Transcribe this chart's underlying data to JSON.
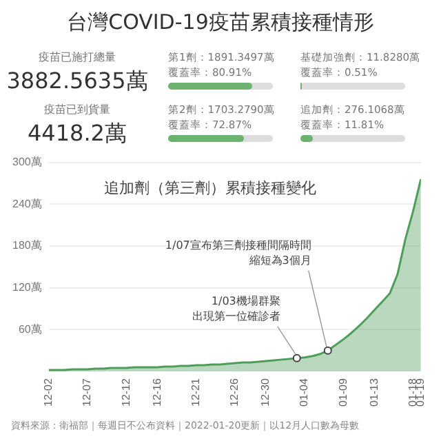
{
  "chart_data": [
    {
      "type": "other",
      "title": "台灣COVID-19疫苗累積接種情形",
      "color": "#6db36f",
      "annotations": [
        "疫苗已施打總量",
        "3882.5635萬",
        "疫苗已到貨量",
        "4418.2萬"
      ],
      "categories": [
        "第1劑：1891.3497萬",
        "基礎加強劑：11.8280萬",
        "第2劑：1703.2790萬",
        "追加劑：276.1068萬"
      ],
      "values": [
        80.91,
        0.51,
        72.87,
        11.81
      ],
      "value_labels": [
        "覆蓋率：80.91%",
        "覆蓋率：0.51%",
        "覆蓋率：72.87%",
        "覆蓋率：11.81%"
      ]
    },
    {
      "type": "area",
      "title": "追加劑（第三劑）累積接種變化",
      "color": "#4f9d5a",
      "x": [
        "2021-12-02",
        "2021-12-03",
        "2021-12-04",
        "2021-12-05",
        "2021-12-06",
        "2021-12-07",
        "2021-12-08",
        "2021-12-09",
        "2021-12-10",
        "2021-12-11",
        "2021-12-12",
        "2021-12-13",
        "2021-12-14",
        "2021-12-15",
        "2021-12-16",
        "2021-12-17",
        "2021-12-18",
        "2021-12-19",
        "2021-12-20",
        "2021-12-21",
        "2021-12-22",
        "2021-12-23",
        "2021-12-24",
        "2021-12-25",
        "2021-12-26",
        "2021-12-27",
        "2021-12-28",
        "2021-12-29",
        "2021-12-30",
        "2021-12-31",
        "2022-01-01",
        "2022-01-02",
        "2022-01-03",
        "2022-01-04",
        "2022-01-05",
        "2022-01-06",
        "2022-01-07",
        "2022-01-08",
        "2022-01-09",
        "2022-01-10",
        "2022-01-11",
        "2022-01-12",
        "2022-01-13",
        "2022-01-14",
        "2022-01-15",
        "2022-01-16",
        "2022-01-17",
        "2022-01-18",
        "2022-01-19"
      ],
      "values": [
        2,
        2,
        2,
        3,
        3,
        3,
        4,
        4,
        5,
        5,
        5,
        6,
        6,
        6,
        6,
        7,
        7,
        8,
        8,
        9,
        9,
        10,
        10,
        11,
        12,
        13,
        13,
        14,
        15,
        16,
        17,
        18,
        19,
        20,
        22,
        25,
        30,
        38,
        46,
        55,
        65,
        76,
        88,
        100,
        112,
        140,
        190,
        230,
        276
      ],
      "xticks": [
        {
          "value": "2021-12-02",
          "label": "12-02"
        },
        {
          "value": "2021-12-07",
          "label": "12-07"
        },
        {
          "value": "2021-12-12",
          "label": "12-12"
        },
        {
          "value": "2021-12-16",
          "label": "12-16"
        },
        {
          "value": "2021-12-21",
          "label": "12-21"
        },
        {
          "value": "2021-12-26",
          "label": "12-26"
        },
        {
          "value": "2021-12-30",
          "label": "12-30"
        },
        {
          "value": "2022-01-04",
          "label": "01-04"
        },
        {
          "value": "2022-01-09",
          "label": "01-09"
        },
        {
          "value": "2022-01-13",
          "label": "01-13"
        },
        {
          "value": "2022-01-18",
          "label": "01-18"
        },
        {
          "value": "2022-01-19",
          "label": "01-19"
        }
      ],
      "xlim": [
        "2021-12-02",
        "2022-01-19"
      ],
      "ylim": [
        0,
        300
      ],
      "yticks": [
        {
          "value": 60,
          "label": "60萬"
        },
        {
          "value": 120,
          "label": "120萬"
        },
        {
          "value": 180,
          "label": "180萬"
        },
        {
          "value": 240,
          "label": "240萬"
        },
        {
          "value": 300,
          "label": "300萬"
        }
      ],
      "grid": "y",
      "annotations": [
        {
          "text": "1/07宣布第三劑接種間隔時間縮短為3個月",
          "x": "2022-01-07",
          "y": 30
        },
        {
          "text": "1/03機場群聚出現第一位確診者",
          "x": "2022-01-03",
          "y": 19
        },
        "資料來源：衛福部｜每週日不公布資料｜2022-01-20更新｜以12月人口數為母數"
      ]
    }
  ]
}
